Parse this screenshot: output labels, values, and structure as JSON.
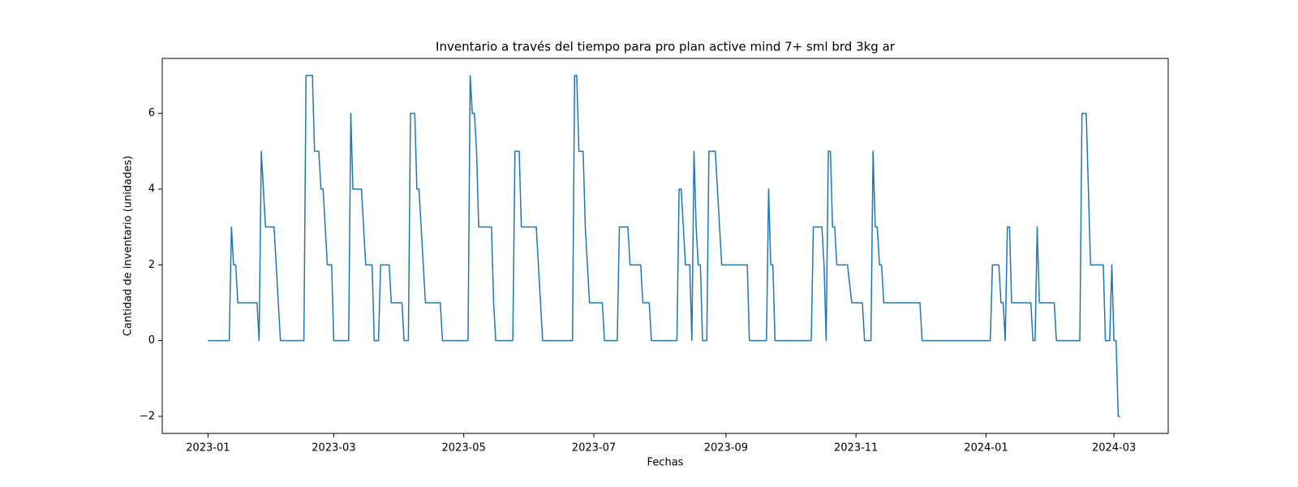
{
  "chart_data": {
    "type": "line",
    "title": "Inventario a través del tiempo para pro plan active mind 7+ sml brd 3kg ar",
    "x_label": "Fechas",
    "y_label": "Cantidad de inventario (unidades)",
    "x": [
      0,
      10,
      11,
      12,
      13,
      14,
      23,
      24,
      25,
      27,
      31,
      34,
      45,
      46,
      49,
      50,
      52,
      53,
      54,
      56,
      58,
      59,
      66,
      67,
      68,
      72,
      74,
      77,
      78,
      80,
      81,
      85,
      86,
      91,
      92,
      94,
      95,
      97,
      98,
      99,
      102,
      109,
      110,
      122,
      123,
      124,
      125,
      126,
      127,
      133,
      134,
      135,
      143,
      144,
      146,
      147,
      154,
      157,
      171,
      172,
      173,
      174,
      176,
      177,
      179,
      185,
      186,
      192,
      193,
      197,
      198,
      203,
      204,
      207,
      208,
      220,
      221,
      222,
      224,
      226,
      227,
      228,
      229,
      230,
      231,
      232,
      234,
      235,
      238,
      241,
      253,
      254,
      262,
      263,
      264,
      265,
      266,
      283,
      284,
      288,
      289,
      290,
      291,
      292,
      293,
      294,
      295,
      300,
      302,
      307,
      308,
      311,
      312,
      313,
      314,
      315,
      316,
      317,
      334,
      335,
      367,
      368,
      371,
      372,
      373,
      374,
      375,
      376,
      377,
      386,
      387,
      388,
      389,
      390,
      397,
      398,
      409,
      410,
      412,
      414,
      420,
      421,
      423,
      424,
      425,
      426,
      427,
      428
    ],
    "series": [
      {
        "name": "Inventario",
        "color": "#1f77b4",
        "values": [
          0,
          0,
          3,
          2,
          2,
          1,
          1,
          0,
          5,
          3,
          3,
          0,
          0,
          7,
          7,
          5,
          5,
          4,
          4,
          2,
          2,
          0,
          0,
          6,
          4,
          4,
          2,
          2,
          0,
          0,
          2,
          2,
          1,
          1,
          0,
          0,
          6,
          6,
          4,
          4,
          1,
          1,
          0,
          0,
          7,
          6,
          6,
          5,
          3,
          3,
          1,
          0,
          0,
          5,
          5,
          3,
          3,
          0,
          0,
          7,
          7,
          5,
          5,
          3,
          1,
          1,
          0,
          0,
          3,
          3,
          2,
          2,
          1,
          1,
          0,
          0,
          4,
          4,
          2,
          2,
          0,
          5,
          3,
          2,
          2,
          0,
          0,
          5,
          5,
          2,
          2,
          0,
          0,
          4,
          2,
          2,
          0,
          0,
          3,
          3,
          2,
          0,
          5,
          5,
          3,
          3,
          2,
          2,
          1,
          1,
          0,
          0,
          5,
          3,
          3,
          2,
          2,
          1,
          1,
          0,
          0,
          2,
          2,
          1,
          1,
          0,
          3,
          3,
          1,
          1,
          0,
          0,
          3,
          1,
          1,
          0,
          0,
          6,
          6,
          2,
          2,
          0,
          0,
          2,
          0,
          0,
          -2,
          -2
        ]
      }
    ],
    "xlim": [
      -21.45,
      450.45
    ],
    "xticks": [
      {
        "value": 0,
        "label": "2023-01"
      },
      {
        "value": 59,
        "label": "2023-03"
      },
      {
        "value": 120,
        "label": "2023-05"
      },
      {
        "value": 181,
        "label": "2023-07"
      },
      {
        "value": 243,
        "label": "2023-09"
      },
      {
        "value": 304,
        "label": "2023-11"
      },
      {
        "value": 365,
        "label": "2024-01"
      },
      {
        "value": 425,
        "label": "2024-03"
      }
    ],
    "ylim": [
      -2.45,
      7.45
    ],
    "yticks": [
      {
        "value": -2,
        "label": "−2"
      },
      0,
      2,
      4,
      6
    ],
    "grid": false
  }
}
